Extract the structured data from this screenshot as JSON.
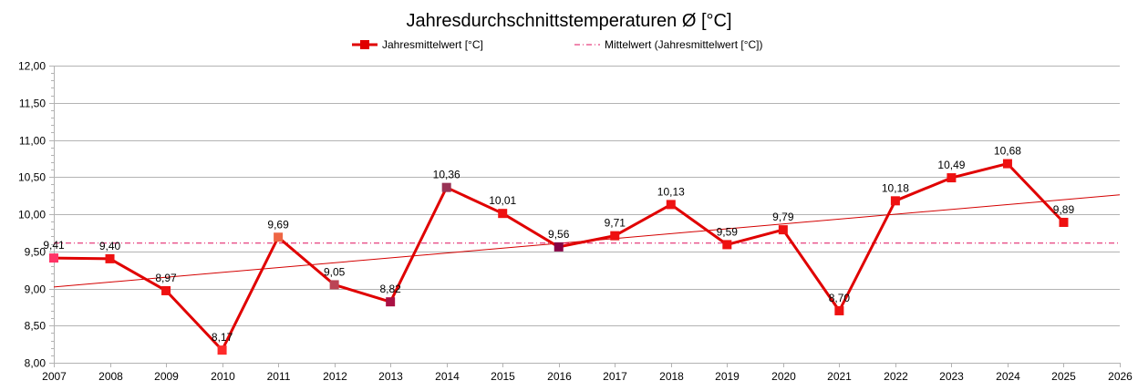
{
  "chart_data": {
    "type": "line",
    "title": "Jahresdurchschnittstemperaturen Ø [°C]",
    "x_ticks": [
      "2007",
      "2008",
      "2009",
      "2010",
      "2011",
      "2012",
      "2013",
      "2014",
      "2015",
      "2016",
      "2017",
      "2018",
      "2019",
      "2020",
      "2021",
      "2022",
      "2023",
      "2024",
      "2025",
      "2026"
    ],
    "y_ticks": [
      "8,00",
      "8,50",
      "9,00",
      "9,50",
      "10,00",
      "10,50",
      "11,00",
      "11,50",
      "12,00"
    ],
    "xlim": [
      2007,
      2026
    ],
    "ylim": [
      8.0,
      12.0
    ],
    "series": [
      {
        "name": "Jahresmittelwert [°C]",
        "color": "#e00000",
        "x": [
          2007,
          2008,
          2009,
          2010,
          2011,
          2012,
          2013,
          2014,
          2015,
          2016,
          2017,
          2018,
          2019,
          2020,
          2021,
          2022,
          2023,
          2024,
          2025
        ],
        "values": [
          9.41,
          9.4,
          8.97,
          8.17,
          9.69,
          9.05,
          8.82,
          10.36,
          10.01,
          9.56,
          9.71,
          10.13,
          9.59,
          9.79,
          8.7,
          10.18,
          10.49,
          10.68,
          9.89
        ],
        "labels": [
          "9,41",
          "9,40",
          "8,97",
          "8,17",
          "9,69",
          "9,05",
          "8,82",
          "10,36",
          "10,01",
          "9,56",
          "9,71",
          "10,13",
          "9,59",
          "9,79",
          "8,70",
          "10,18",
          "10,49",
          "10,68",
          "9,89"
        ],
        "marker_colors": [
          "#ff3366",
          "#ee1111",
          "#ee1111",
          "#ff2a2a",
          "#ee6644",
          "#bb4455",
          "#aa1144",
          "#993355",
          "#ee1111",
          "#880044",
          "#ee1111",
          "#ee1111",
          "#ee1111",
          "#ee1111",
          "#ee1111",
          "#ee1111",
          "#ee1111",
          "#ee1111",
          "#ee1111"
        ]
      },
      {
        "name": "Mittelwert (Jahresmittelwert [°C])",
        "color": "#e0115f",
        "value": 9.61
      }
    ],
    "trendline": {
      "color": "#d40000",
      "start": [
        2007,
        9.02
      ],
      "end": [
        2026,
        10.26
      ]
    },
    "legend": "top-center",
    "grid": true
  }
}
